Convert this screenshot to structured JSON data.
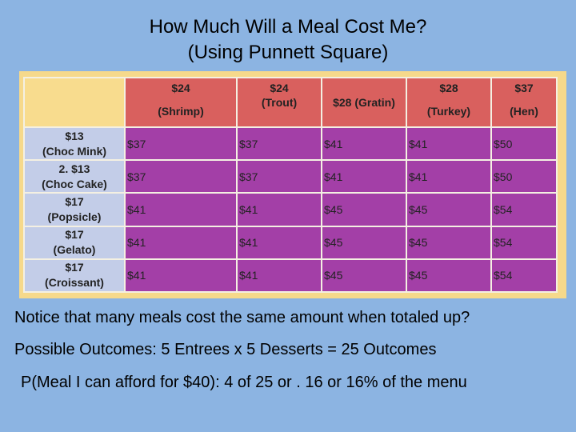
{
  "title": {
    "line1": "How Much Will a Meal Cost Me?",
    "line2": "(Using Punnett Square)"
  },
  "entrees": [
    {
      "price": "$24",
      "name": "(Shrimp)"
    },
    {
      "price": "$24",
      "name": "(Trout)"
    },
    {
      "label": "$28 (Gratin)"
    },
    {
      "price": "$28",
      "name": "(Turkey)"
    },
    {
      "price": "$37",
      "name": "(Hen)"
    }
  ],
  "desserts": [
    {
      "price": "$13",
      "name": "(Choc Mink)"
    },
    {
      "price": "2. $13",
      "name": "(Choc Cake)"
    },
    {
      "price": "$17",
      "name": "(Popsicle)"
    },
    {
      "price": "$17",
      "name": "(Gelato)"
    },
    {
      "price": "$17",
      "name": "(Croissant)"
    }
  ],
  "totals": [
    [
      "$37",
      "$37",
      "$41",
      "$41",
      "$50"
    ],
    [
      "$37",
      "$37",
      "$41",
      "$41",
      "$50"
    ],
    [
      "$41",
      "$41",
      "$45",
      "$45",
      "$54"
    ],
    [
      "$41",
      "$41",
      "$45",
      "$45",
      "$54"
    ],
    [
      "$41",
      "$41",
      "$45",
      "$45",
      "$54"
    ]
  ],
  "notes": {
    "line1": "Notice that many meals cost the same amount when totaled up?",
    "line2": "Possible Outcomes: 5 Entrees x 5 Desserts = 25 Outcomes",
    "line3": "P(Meal I can afford for $40): 4 of 25 or . 16 or 16% of the menu"
  },
  "colors": {
    "background": "#8cb4e2",
    "header_row": "#d9605e",
    "header_col": "#c3cde8",
    "cells": "#a33fa7",
    "frame": "#f6d98b"
  }
}
